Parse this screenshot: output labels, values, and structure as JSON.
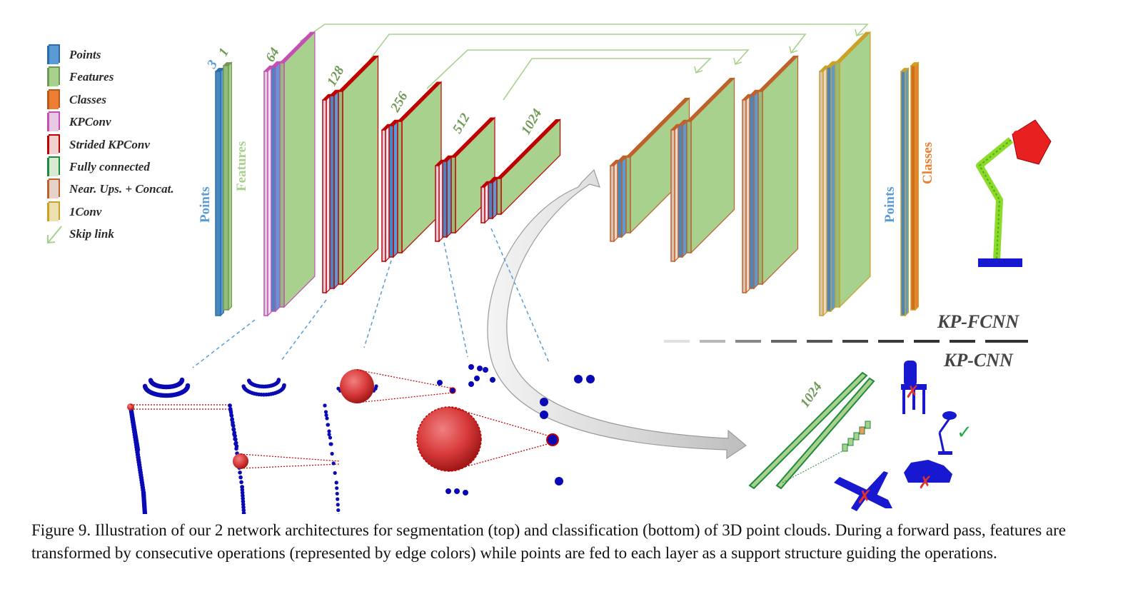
{
  "legend": {
    "items": [
      {
        "label": "Points",
        "color": "#5b9bd5",
        "edge": "#2e6ca3"
      },
      {
        "label": "Features",
        "color": "#a9d18e",
        "edge": "#6f9a55"
      },
      {
        "label": "Classes",
        "color": "#ed7d31",
        "edge": "#b55a1b"
      },
      {
        "label": "KPConv",
        "color": "#e8c9e6",
        "edge": "#c54fb3"
      },
      {
        "label": "Strided KPConv",
        "color": "#f2d0d0",
        "edge": "#c00000"
      },
      {
        "label": "Fully connected",
        "color": "#d9ead3",
        "edge": "#1e8a3c"
      },
      {
        "label": "Near. Ups. + Concat.",
        "color": "#e5d2c8",
        "edge": "#c0602a"
      },
      {
        "label": "1Conv",
        "color": "#ece0b0",
        "edge": "#c9a227"
      }
    ],
    "skip_label": "Skip link"
  },
  "architecture": {
    "input_dims": [
      "3",
      "1"
    ],
    "encoder_dims": [
      "64",
      "128",
      "256",
      "512",
      "1024"
    ],
    "points_label": "Points",
    "features_label": "Features",
    "classes_label": "Classes",
    "classifier_dim": "1024"
  },
  "networks": {
    "segmentation": "KP-FCNN",
    "classification": "KP-CNN"
  },
  "colors": {
    "points": "#5b9bd5",
    "features": "#a9d18e",
    "classes": "#ed7d31",
    "kpconv": "#c54fb3",
    "strided": "#c00000",
    "fully_connected": "#1e8a3c",
    "upsample": "#c0602a",
    "one_conv": "#c9a227",
    "skip": "#a9d18e",
    "point_cloud": "#0a0ab4",
    "kernel_sphere": "#d83a3a"
  },
  "caption": "Figure 9. Illustration of our 2 network architectures for segmentation (top) and classification (bottom) of 3D point clouds.  During a forward pass, features are transformed by consecutive operations (represented by edge colors) while points are fed to each layer as a support structure guiding the operations."
}
